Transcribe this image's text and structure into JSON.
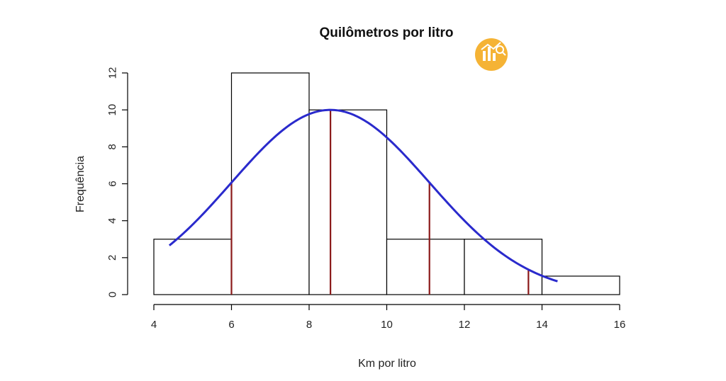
{
  "chart_data": {
    "type": "bar",
    "subtype": "histogram",
    "title": "Quilômetros por litro",
    "xlabel": "Km por litro",
    "ylabel": "Frequência",
    "xlim": [
      4,
      16
    ],
    "ylim": [
      0,
      12
    ],
    "x_ticks": [
      "4",
      "6",
      "8",
      "10",
      "12",
      "14",
      "16"
    ],
    "y_ticks": [
      "0",
      "2",
      "4",
      "6",
      "8",
      "10",
      "12"
    ],
    "bins": [
      {
        "from": 4,
        "to": 6,
        "count": 3
      },
      {
        "from": 6,
        "to": 8,
        "count": 12
      },
      {
        "from": 8,
        "to": 10,
        "count": 10
      },
      {
        "from": 10,
        "to": 12,
        "count": 3
      },
      {
        "from": 12,
        "to": 14,
        "count": 3
      },
      {
        "from": 14,
        "to": 16,
        "count": 1
      }
    ],
    "density_curve": {
      "color": "#2a2acc",
      "x_range": [
        4.4,
        14.4
      ],
      "peak_x": 8.55,
      "peak_y": 10,
      "sd": 2.55
    },
    "reference_lines": {
      "color": "#8b1a1a",
      "x": [
        6.0,
        8.55,
        11.1,
        13.65
      ]
    },
    "grid": false,
    "legend": "none",
    "bar_fill": "#ffffff",
    "bar_stroke": "#000000"
  },
  "badge": {
    "icon": "chart-analytics-icon",
    "color": "#f5b335"
  }
}
